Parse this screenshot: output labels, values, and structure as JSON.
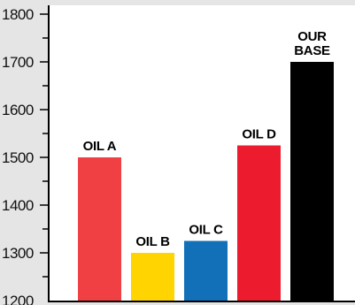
{
  "chart_data": {
    "type": "bar",
    "title": "",
    "xlabel": "",
    "ylabel": "",
    "ylim": [
      1200,
      1800
    ],
    "yticks": [
      1200,
      1300,
      1400,
      1500,
      1600,
      1700,
      1800
    ],
    "grid": false,
    "categories": [
      "OIL A",
      "OIL B",
      "OIL C",
      "OIL D",
      "OUR BASE"
    ],
    "category_label_lines": [
      [
        "OIL A"
      ],
      [
        "OIL B"
      ],
      [
        "OIL C"
      ],
      [
        "OIL D"
      ],
      [
        "OUR",
        "BASE"
      ]
    ],
    "values": [
      1500,
      1300,
      1325,
      1525,
      1700
    ],
    "colors": [
      "#f04043",
      "#ffd400",
      "#1170b8",
      "#ec1c2e",
      "#000000"
    ],
    "background": "#e5e5e5",
    "plot_background": "#ffffff"
  }
}
